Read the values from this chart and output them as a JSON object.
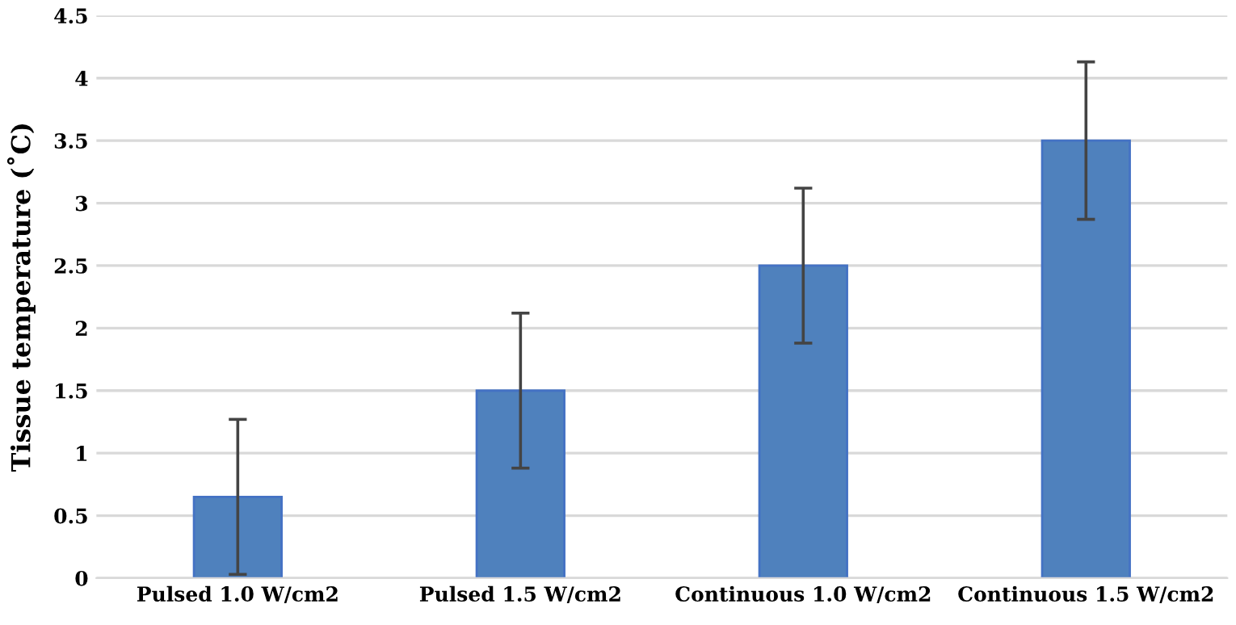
{
  "chart_data": {
    "type": "bar",
    "ylabel": "Tissue temperature (˚C)",
    "categories": [
      "Pulsed 1.0 W/cm2",
      "Pulsed 1.5 W/cm2",
      "Continuous 1.0 W/cm2",
      "Continuous 1.5 W/cm2"
    ],
    "values": [
      0.65,
      1.5,
      2.5,
      3.5
    ],
    "errors": [
      0.62,
      0.62,
      0.62,
      0.63
    ],
    "color": "#4f81bd",
    "ylim": [
      0,
      4.5
    ],
    "yticks": [
      {
        "value": 0,
        "label": "0"
      },
      0.5,
      1,
      1.5,
      2,
      2.5,
      3,
      3.5,
      4,
      4.5
    ],
    "grid": "y"
  }
}
